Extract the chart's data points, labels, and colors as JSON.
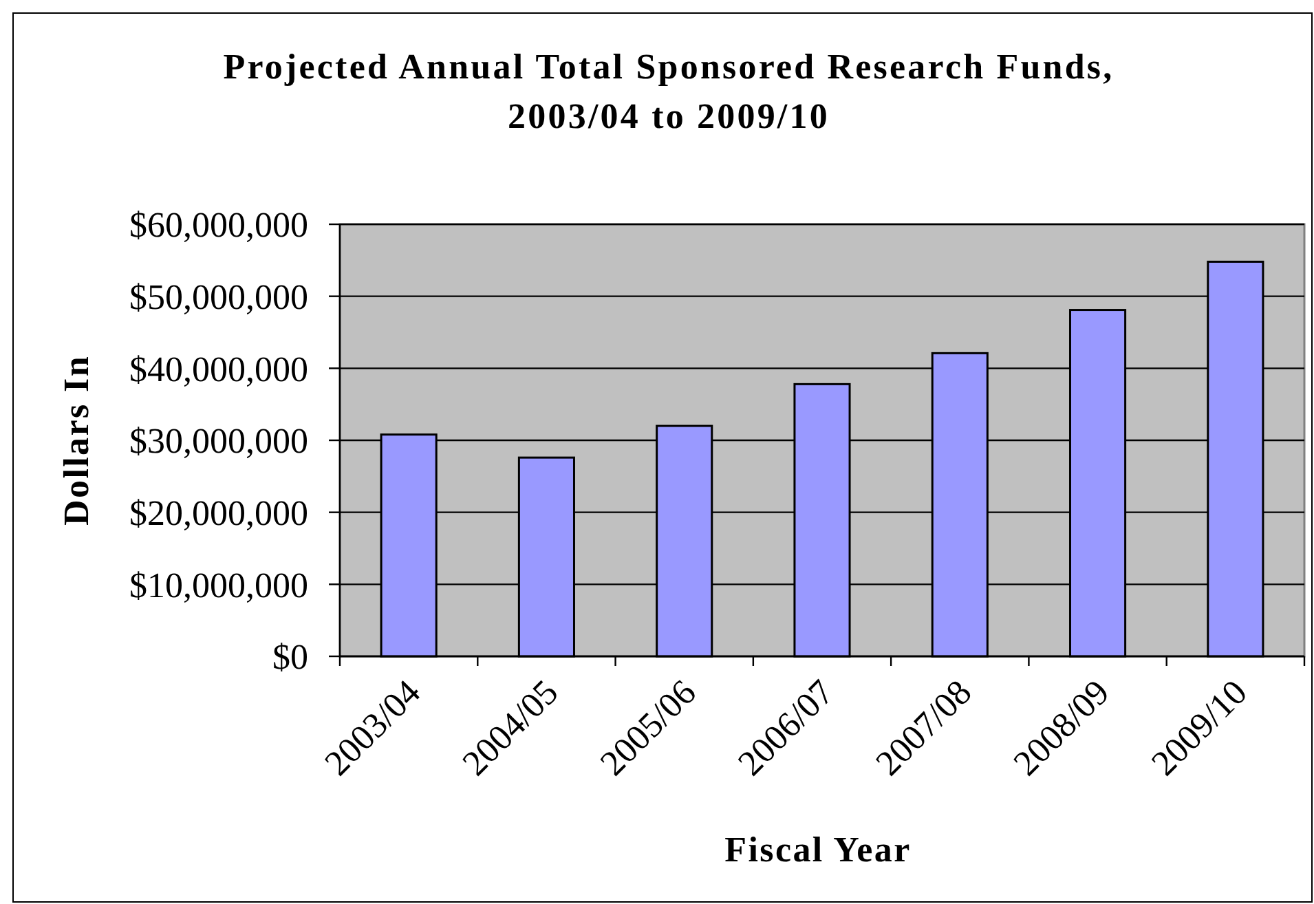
{
  "chart_data": {
    "type": "bar",
    "title": "Projected Annual Total Sponsored Research Funds,\n2003/04 to 2009/10",
    "xlabel": "Fiscal Year",
    "ylabel": "Dollars In",
    "categories": [
      "2003/04",
      "2004/05",
      "2005/06",
      "2006/07",
      "2007/08",
      "2008/09",
      "2009/10"
    ],
    "values": [
      30800000,
      27600000,
      32000000,
      37800000,
      42100000,
      48100000,
      54800000
    ],
    "color": "#9999ff",
    "ylim": [
      0,
      60000000
    ],
    "yticks": [
      {
        "value": 0,
        "label": "$0"
      },
      {
        "value": 10000000,
        "label": "$10,000,000"
      },
      {
        "value": 20000000,
        "label": "$20,000,000"
      },
      {
        "value": 30000000,
        "label": "$30,000,000"
      },
      {
        "value": 40000000,
        "label": "$40,000,000"
      },
      {
        "value": 50000000,
        "label": "$50,000,000"
      },
      {
        "value": 60000000,
        "label": "$60,000,000"
      }
    ],
    "grid": "y"
  }
}
